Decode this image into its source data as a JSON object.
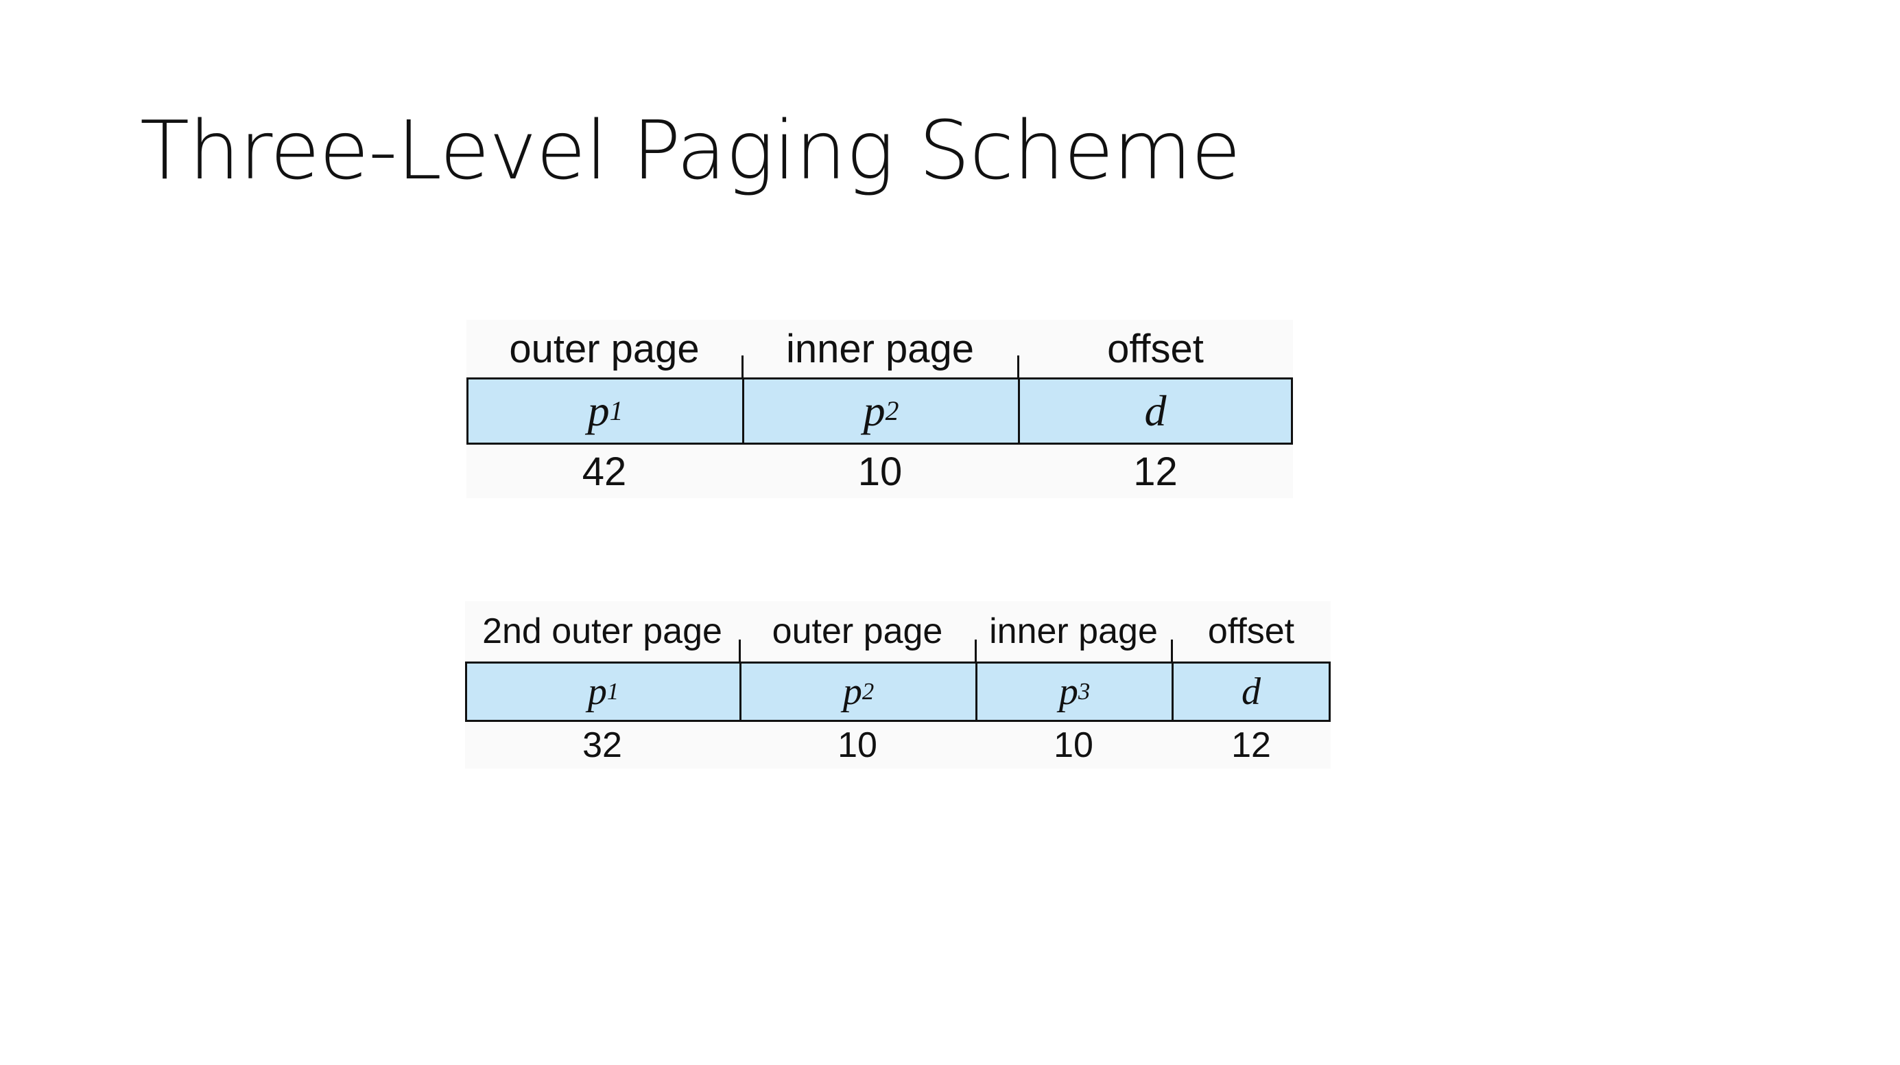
{
  "slide": {
    "title": "Three-Level Paging Scheme"
  },
  "figure_two_level": {
    "fields": [
      {
        "label": "outer page",
        "symbol": "p",
        "subscript": "1",
        "bits": "42"
      },
      {
        "label": "inner page",
        "symbol": "p",
        "subscript": "2",
        "bits": "10"
      },
      {
        "label": "offset",
        "symbol": "d",
        "subscript": "",
        "bits": "12"
      }
    ]
  },
  "figure_three_level": {
    "fields": [
      {
        "label": "2nd outer page",
        "symbol": "p",
        "subscript": "1",
        "bits": "32"
      },
      {
        "label": "outer page",
        "symbol": "p",
        "subscript": "2",
        "bits": "10"
      },
      {
        "label": "inner page",
        "symbol": "p",
        "subscript": "3",
        "bits": "10"
      },
      {
        "label": "offset",
        "symbol": "d",
        "subscript": "",
        "bits": "12"
      }
    ]
  },
  "colors": {
    "field_fill": "#c7e6f8",
    "border": "#111111",
    "background": "#ffffff"
  }
}
